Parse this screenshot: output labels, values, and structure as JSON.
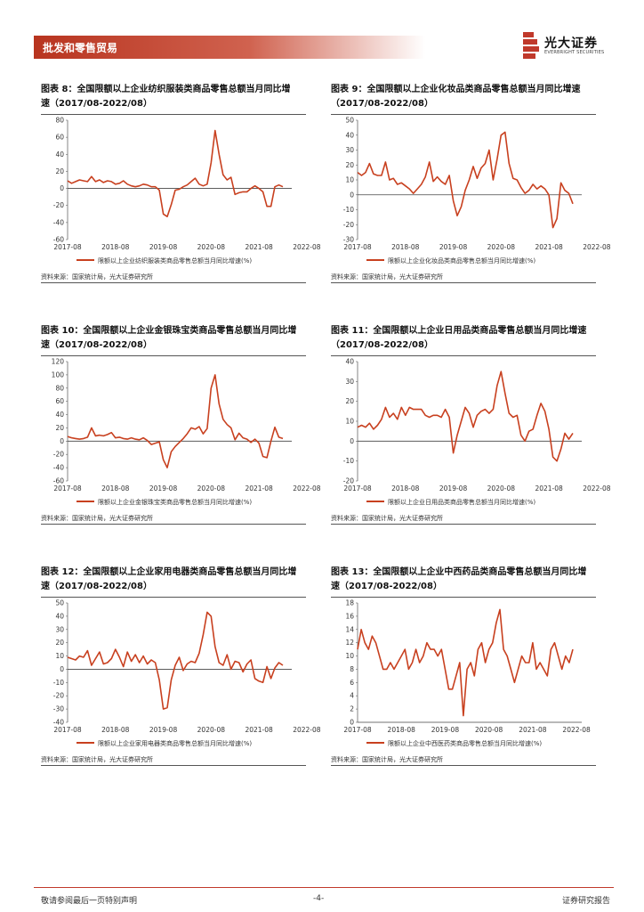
{
  "header": {
    "section": "批发和零售贸易",
    "logo_cn": "光大证券",
    "logo_en": "EVERBRIGHT SECURITIES"
  },
  "footer": {
    "left": "敬请参阅最后一页特别声明",
    "page": "-4-",
    "right": "证券研究报告"
  },
  "colors": {
    "line": "#c8401f",
    "brand": "#b8341f"
  },
  "chart_data": [
    {
      "type": "line",
      "title": "图表 8：全国限额以上企业纺织服装类商品零售总额当月同比增",
      "subtitle": "速（2017/08-2022/08）",
      "legend": "限额以上企业纺织服装类商品零售总额当月同比增速(%)",
      "source": "资料来源：国家统计局，光大证券研究所",
      "ylim": [
        -60,
        80
      ],
      "yticks": [
        "80",
        "60",
        "40",
        "20",
        "0",
        "-20",
        "-40",
        "-60"
      ],
      "xticks": [
        "2017-08",
        "2018-08",
        "2019-08",
        "2020-08",
        "2021-08",
        "2022-08"
      ],
      "values": [
        9,
        6,
        8,
        10,
        9,
        8,
        14,
        8,
        10,
        7,
        9,
        8,
        5,
        6,
        9,
        5,
        3,
        2,
        3,
        5,
        4,
        2,
        2,
        -2,
        -30,
        -33,
        -19,
        -2,
        -1,
        2,
        4,
        8,
        12,
        5,
        3,
        5,
        30,
        68,
        40,
        16,
        10,
        13,
        -7,
        -5,
        -4,
        -4,
        0,
        3,
        0,
        -4,
        -21,
        -21,
        2,
        4,
        2
      ],
      "series_name": "限额以上企业纺织服装类商品零售总额当月同比增速(%)"
    },
    {
      "type": "line",
      "title": "图表 9：全国限额以上企业化妆品类商品零售总额当月同比增速",
      "subtitle": "（2017/08-2022/08）",
      "legend": "限额以上企业化妆品类商品零售总额当月同比增速(%)",
      "source": "资料来源：国家统计局，光大证券研究所",
      "ylim": [
        -30,
        50
      ],
      "yticks": [
        "50",
        "40",
        "30",
        "20",
        "10",
        "0",
        "-10",
        "-20",
        "-30"
      ],
      "xticks": [
        "2017-08",
        "2018-08",
        "2019-08",
        "2020-08",
        "2021-08",
        "2022-08"
      ],
      "values": [
        15,
        13,
        15,
        21,
        14,
        13,
        13,
        22,
        10,
        11,
        7,
        8,
        6,
        4,
        1,
        4,
        7,
        12,
        22,
        9,
        12,
        9,
        7,
        13,
        -4,
        -14,
        -8,
        3,
        10,
        19,
        11,
        18,
        21,
        30,
        10,
        24,
        40,
        42,
        21,
        11,
        10,
        5,
        1,
        3,
        7,
        4,
        6,
        4,
        0,
        -22,
        -16,
        8,
        3,
        1,
        -6
      ]
    },
    {
      "type": "line",
      "title": "图表 10：全国限额以上企业金银珠宝类商品零售总额当月同比增",
      "subtitle": "速（2017/08-2022/08）",
      "legend": "限额以上企业金银珠宝类商品零售总额当月同比增速(%)",
      "source": "资料来源：国家统计局，光大证券研究所",
      "ylim": [
        -60,
        120
      ],
      "yticks": [
        "120",
        "100",
        "80",
        "60",
        "40",
        "20",
        "0",
        "-20",
        "-40",
        "-60"
      ],
      "xticks": [
        "2017-08",
        "2018-08",
        "2019-08",
        "2020-08",
        "2021-08",
        "2022-08"
      ],
      "values": [
        7,
        5,
        4,
        3,
        4,
        6,
        20,
        8,
        9,
        8,
        10,
        13,
        5,
        6,
        4,
        3,
        5,
        3,
        2,
        5,
        1,
        -5,
        -3,
        -1,
        -28,
        -40,
        -16,
        -8,
        -2,
        4,
        11,
        20,
        18,
        22,
        11,
        19,
        80,
        100,
        56,
        33,
        25,
        20,
        2,
        12,
        5,
        3,
        -2,
        3,
        -3,
        -23,
        -25,
        0,
        21,
        6,
        4
      ]
    },
    {
      "type": "line",
      "title": "图表 11：全国限额以上企业日用品类商品零售总额当月同比增速",
      "subtitle": "（2017/08-2022/08）",
      "legend": "限额以上企业日用品类商品零售总额当月同比增速(%)",
      "source": "资料来源：国家统计局，光大证券研究所",
      "ylim": [
        -20,
        40
      ],
      "yticks": [
        "40",
        "30",
        "20",
        "10",
        "0",
        "-10",
        "-20"
      ],
      "xticks": [
        "2017-08",
        "2018-08",
        "2019-08",
        "2020-08",
        "2021-08",
        "2022-08"
      ],
      "values": [
        7,
        8,
        7,
        9,
        6,
        8,
        11,
        17,
        12,
        14,
        11,
        17,
        13,
        17,
        16,
        16,
        16,
        13,
        12,
        13,
        13,
        12,
        16,
        12,
        -6,
        3,
        10,
        17,
        14,
        7,
        13,
        15,
        16,
        14,
        16,
        28,
        35,
        24,
        14,
        12,
        13,
        3,
        0,
        5,
        6,
        13,
        19,
        15,
        6,
        -8,
        -10,
        -4,
        4,
        1,
        4
      ]
    },
    {
      "type": "line",
      "title": "图表 12：全国限额以上企业家用电器类商品零售总额当月同比增",
      "subtitle": "速（2017/08-2022/08）",
      "legend": "限额以上企业家用电器类商品零售总额当月同比增速(%)",
      "source": "资料来源：国家统计局，光大证券研究所",
      "ylim": [
        -40,
        50
      ],
      "yticks": [
        "50",
        "40",
        "30",
        "20",
        "10",
        "0",
        "-10",
        "-20",
        "-30",
        "-40"
      ],
      "xticks": [
        "2017-08",
        "2018-08",
        "2019-08",
        "2020-08",
        "2021-08",
        "2022-08"
      ],
      "values": [
        9,
        8,
        7,
        10,
        9,
        14,
        3,
        8,
        13,
        4,
        5,
        8,
        15,
        9,
        2,
        13,
        6,
        11,
        5,
        10,
        4,
        7,
        5,
        -8,
        -30,
        -29,
        -8,
        3,
        9,
        -1,
        4,
        6,
        5,
        12,
        26,
        43,
        40,
        17,
        5,
        3,
        11,
        0,
        6,
        5,
        -2,
        4,
        7,
        -7,
        -9,
        -10,
        2,
        -7,
        1,
        5,
        3
      ]
    },
    {
      "type": "line",
      "title": "图表 13：全国限额以上企业中西药品类商品零售总额当月同比增",
      "subtitle": "速（2017/08-2022/08）",
      "legend": "限额以上企业中西医药类商品零售总额当月同比增速(%)",
      "source": "资料来源：国家统计局，光大证券研究所",
      "ylim": [
        0,
        18
      ],
      "yticks": [
        "18",
        "16",
        "14",
        "12",
        "10",
        "8",
        "6",
        "4",
        "2",
        "0"
      ],
      "xticks": [
        "2017-08",
        "2018-08",
        "2019-08",
        "2020-08",
        "2021-08",
        "2022-08"
      ],
      "values": [
        11,
        14,
        12,
        11,
        13,
        12,
        10,
        8,
        8,
        9,
        8,
        9,
        10,
        11,
        8,
        9,
        11,
        9,
        10,
        12,
        11,
        11,
        10,
        11,
        8,
        5,
        5,
        7,
        9,
        1,
        8,
        9,
        7,
        11,
        12,
        9,
        11,
        12,
        15,
        17,
        11,
        10,
        8,
        6,
        8,
        10,
        9,
        9,
        12,
        8,
        9,
        8,
        7,
        11,
        12,
        10,
        8,
        10,
        9,
        11
      ]
    }
  ]
}
